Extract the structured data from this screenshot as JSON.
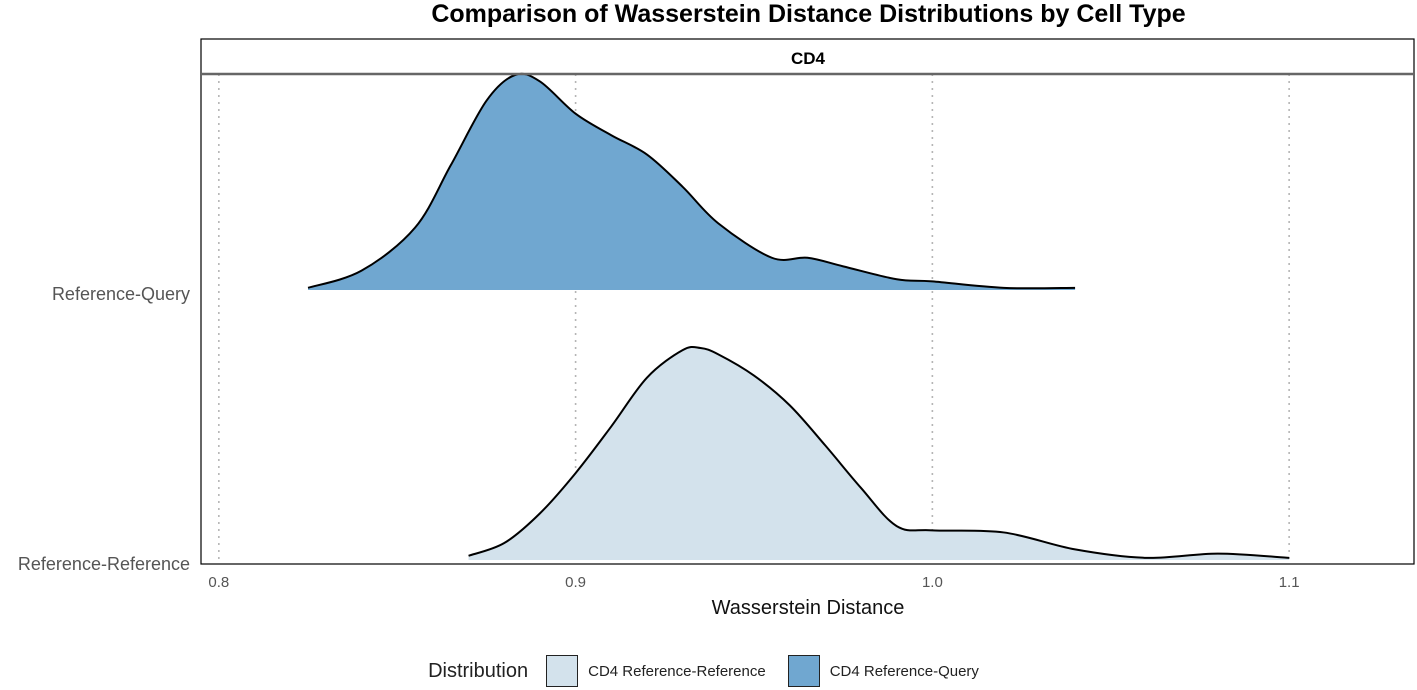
{
  "chart_data": {
    "type": "area",
    "subtype": "ridgeline-density",
    "title": "Comparison of Wasserstein Distance Distributions by Cell Type",
    "facet_label": "CD4",
    "xlabel": "Wasserstein Distance",
    "ylabel": "",
    "xlim": [
      0.795,
      1.135
    ],
    "x_ticks": [
      0.8,
      0.9,
      1.0,
      1.1
    ],
    "x_tick_labels": [
      "0.8",
      "0.9",
      "1.0",
      "1.1"
    ],
    "y_categories": [
      "Reference-Query",
      "Reference-Reference"
    ],
    "grid": "vertical dotted at x ticks",
    "legend": {
      "title": "Distribution",
      "position": "bottom",
      "entries": [
        {
          "label": "CD4 Reference-Reference",
          "color": "#d3e2ec"
        },
        {
          "label": "CD4 Reference-Query",
          "color": "#70a7d0"
        }
      ]
    },
    "series": [
      {
        "name": "CD4 Reference-Query",
        "category": "Reference-Query",
        "color": "#70a7d0",
        "x": [
          0.825,
          0.84,
          0.855,
          0.865,
          0.875,
          0.883,
          0.89,
          0.9,
          0.91,
          0.92,
          0.93,
          0.94,
          0.955,
          0.965,
          0.975,
          0.99,
          1.0,
          1.02,
          1.04
        ],
        "density": [
          0.01,
          0.09,
          0.29,
          0.58,
          0.88,
          1.0,
          0.97,
          0.82,
          0.72,
          0.63,
          0.48,
          0.31,
          0.15,
          0.15,
          0.11,
          0.05,
          0.04,
          0.01,
          0.01
        ]
      },
      {
        "name": "CD4 Reference-Reference",
        "category": "Reference-Reference",
        "color": "#d3e2ec",
        "x": [
          0.87,
          0.88,
          0.89,
          0.9,
          0.91,
          0.92,
          0.93,
          0.935,
          0.94,
          0.95,
          0.96,
          0.97,
          0.98,
          0.99,
          1.0,
          1.02,
          1.04,
          1.06,
          1.08,
          1.1
        ],
        "density": [
          0.02,
          0.08,
          0.22,
          0.41,
          0.63,
          0.86,
          0.99,
          1.0,
          0.97,
          0.87,
          0.73,
          0.54,
          0.34,
          0.16,
          0.14,
          0.13,
          0.05,
          0.01,
          0.03,
          0.01
        ]
      }
    ]
  }
}
